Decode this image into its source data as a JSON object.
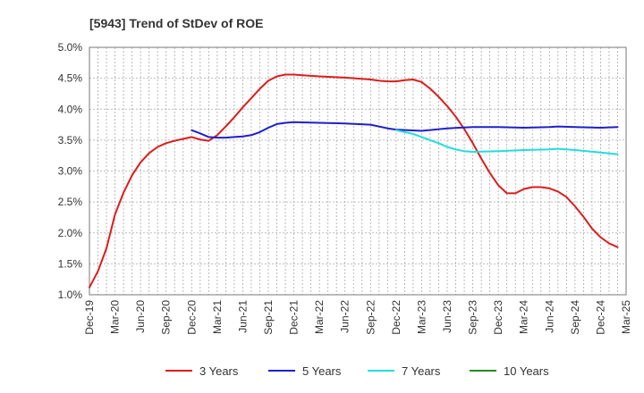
{
  "chart_data": {
    "type": "line",
    "title": "[5943]  Trend of StDev of ROE",
    "xlabel": "",
    "ylabel": "",
    "ylim": [
      1.0,
      5.0
    ],
    "y_ticks": [
      "1.0%",
      "1.5%",
      "2.0%",
      "2.5%",
      "3.0%",
      "3.5%",
      "4.0%",
      "4.5%",
      "5.0%"
    ],
    "x_ticks": [
      "Dec-19",
      "Mar-20",
      "Jun-20",
      "Sep-20",
      "Dec-20",
      "Mar-21",
      "Jun-21",
      "Sep-21",
      "Dec-21",
      "Mar-22",
      "Jun-22",
      "Sep-22",
      "Dec-22",
      "Mar-23",
      "Jun-23",
      "Sep-23",
      "Dec-23",
      "Mar-24",
      "Jun-24",
      "Sep-24",
      "Dec-24",
      "Mar-25"
    ],
    "x_range_months": [
      "2019-12",
      "2025-03"
    ],
    "grid": true,
    "legend_position": "bottom",
    "series": [
      {
        "name": "3 Years",
        "color": "#dd1c1c",
        "points": [
          [
            "2019-12",
            1.12
          ],
          [
            "2020-01",
            1.38
          ],
          [
            "2020-02",
            1.75
          ],
          [
            "2020-03",
            2.3
          ],
          [
            "2020-04",
            2.65
          ],
          [
            "2020-05",
            2.93
          ],
          [
            "2020-06",
            3.14
          ],
          [
            "2020-07",
            3.29
          ],
          [
            "2020-08",
            3.39
          ],
          [
            "2020-09",
            3.45
          ],
          [
            "2020-10",
            3.49
          ],
          [
            "2020-11",
            3.52
          ],
          [
            "2020-12",
            3.55
          ],
          [
            "2021-01",
            3.51
          ],
          [
            "2021-02",
            3.49
          ],
          [
            "2021-03",
            3.58
          ],
          [
            "2021-04",
            3.72
          ],
          [
            "2021-05",
            3.87
          ],
          [
            "2021-06",
            4.03
          ],
          [
            "2021-07",
            4.18
          ],
          [
            "2021-08",
            4.33
          ],
          [
            "2021-09",
            4.46
          ],
          [
            "2021-10",
            4.53
          ],
          [
            "2021-11",
            4.56
          ],
          [
            "2021-12",
            4.56
          ],
          [
            "2022-01",
            4.55
          ],
          [
            "2022-02",
            4.54
          ],
          [
            "2022-03",
            4.53
          ],
          [
            "2022-06",
            4.51
          ],
          [
            "2022-09",
            4.48
          ],
          [
            "2022-10",
            4.46
          ],
          [
            "2022-11",
            4.45
          ],
          [
            "2022-12",
            4.45
          ],
          [
            "2023-01",
            4.47
          ],
          [
            "2023-02",
            4.48
          ],
          [
            "2023-03",
            4.44
          ],
          [
            "2023-04",
            4.33
          ],
          [
            "2023-05",
            4.2
          ],
          [
            "2023-06",
            4.05
          ],
          [
            "2023-07",
            3.88
          ],
          [
            "2023-08",
            3.68
          ],
          [
            "2023-09",
            3.45
          ],
          [
            "2023-10",
            3.2
          ],
          [
            "2023-11",
            2.97
          ],
          [
            "2023-12",
            2.77
          ],
          [
            "2024-01",
            2.64
          ],
          [
            "2024-02",
            2.64
          ],
          [
            "2024-03",
            2.71
          ],
          [
            "2024-04",
            2.74
          ],
          [
            "2024-05",
            2.74
          ],
          [
            "2024-06",
            2.72
          ],
          [
            "2024-07",
            2.67
          ],
          [
            "2024-08",
            2.58
          ],
          [
            "2024-09",
            2.43
          ],
          [
            "2024-10",
            2.26
          ],
          [
            "2024-11",
            2.07
          ],
          [
            "2024-12",
            1.93
          ],
          [
            "2025-01",
            1.83
          ],
          [
            "2025-02",
            1.77
          ]
        ]
      },
      {
        "name": "5 Years",
        "color": "#1f1fcc",
        "points": [
          [
            "2020-12",
            3.66
          ],
          [
            "2021-01",
            3.61
          ],
          [
            "2021-02",
            3.55
          ],
          [
            "2021-03",
            3.54
          ],
          [
            "2021-04",
            3.54
          ],
          [
            "2021-05",
            3.55
          ],
          [
            "2021-06",
            3.56
          ],
          [
            "2021-07",
            3.58
          ],
          [
            "2021-08",
            3.63
          ],
          [
            "2021-09",
            3.7
          ],
          [
            "2021-10",
            3.76
          ],
          [
            "2021-11",
            3.78
          ],
          [
            "2021-12",
            3.79
          ],
          [
            "2022-03",
            3.78
          ],
          [
            "2022-06",
            3.77
          ],
          [
            "2022-09",
            3.75
          ],
          [
            "2022-10",
            3.72
          ],
          [
            "2022-11",
            3.69
          ],
          [
            "2022-12",
            3.67
          ],
          [
            "2023-03",
            3.65
          ],
          [
            "2023-06",
            3.69
          ],
          [
            "2023-09",
            3.71
          ],
          [
            "2023-12",
            3.71
          ],
          [
            "2024-03",
            3.7
          ],
          [
            "2024-06",
            3.71
          ],
          [
            "2024-07",
            3.72
          ],
          [
            "2024-09",
            3.71
          ],
          [
            "2024-12",
            3.7
          ],
          [
            "2025-02",
            3.71
          ]
        ]
      },
      {
        "name": "7 Years",
        "color": "#22dddd",
        "points": [
          [
            "2022-12",
            3.66
          ],
          [
            "2023-01",
            3.63
          ],
          [
            "2023-02",
            3.6
          ],
          [
            "2023-03",
            3.55
          ],
          [
            "2023-04",
            3.5
          ],
          [
            "2023-05",
            3.45
          ],
          [
            "2023-06",
            3.39
          ],
          [
            "2023-07",
            3.35
          ],
          [
            "2023-08",
            3.32
          ],
          [
            "2023-09",
            3.31
          ],
          [
            "2023-12",
            3.32
          ],
          [
            "2024-03",
            3.34
          ],
          [
            "2024-06",
            3.35
          ],
          [
            "2024-07",
            3.36
          ],
          [
            "2024-08",
            3.35
          ],
          [
            "2024-09",
            3.34
          ],
          [
            "2024-12",
            3.3
          ],
          [
            "2025-02",
            3.27
          ]
        ]
      },
      {
        "name": "10 Years",
        "color": "#228b22",
        "points": []
      }
    ]
  }
}
